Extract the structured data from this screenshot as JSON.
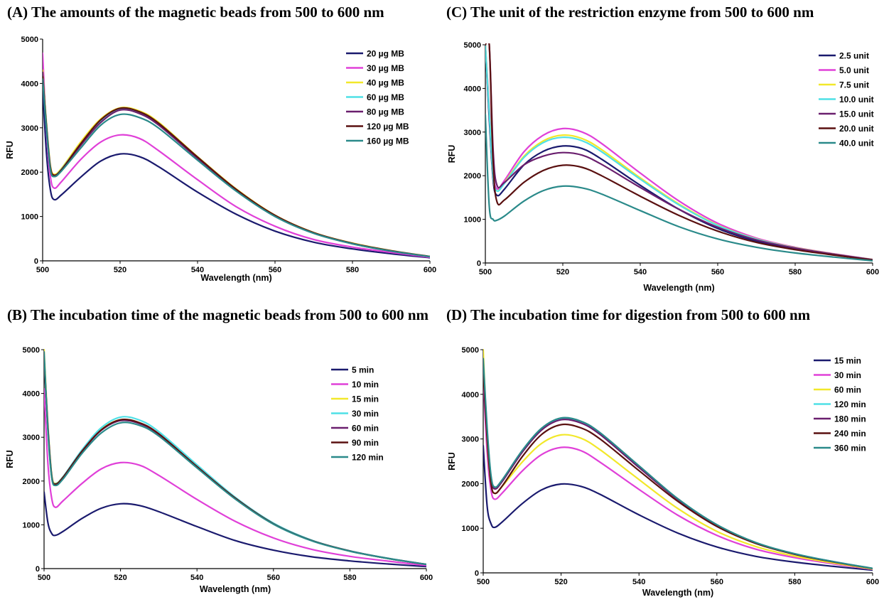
{
  "chart_data": [
    {
      "panel": "A",
      "type": "line",
      "title": "(A) The amounts of the magnetic beads from 500 to 600 nm",
      "xlabel": "Wavelength (nm)",
      "ylabel": "RFU",
      "xlim": [
        500,
        600
      ],
      "ylim": [
        0,
        5000
      ],
      "xticks": [
        500,
        520,
        540,
        560,
        580,
        600
      ],
      "yticks": [
        0,
        1000,
        2000,
        3000,
        4000,
        5000
      ],
      "grid": false,
      "legend": "top-right",
      "x": [
        500,
        501,
        502,
        503,
        505,
        510,
        515,
        520,
        525,
        530,
        540,
        550,
        560,
        570,
        580,
        590,
        600
      ],
      "series": [
        {
          "name": "20 µg MB",
          "color": "#1a1a6e",
          "values": [
            3900,
            2400,
            1600,
            1380,
            1500,
            1900,
            2250,
            2410,
            2350,
            2120,
            1550,
            1050,
            670,
            420,
            270,
            160,
            70
          ]
        },
        {
          "name": "30 µg MB",
          "color": "#e040d8",
          "values": [
            4680,
            2900,
            1900,
            1640,
            1800,
            2300,
            2680,
            2840,
            2760,
            2480,
            1830,
            1220,
            780,
            480,
            310,
            190,
            80
          ]
        },
        {
          "name": "40 µg MB",
          "color": "#f2e82a",
          "values": [
            4300,
            3100,
            2150,
            1950,
            2100,
            2700,
            3200,
            3450,
            3380,
            3120,
            2350,
            1620,
            1030,
            640,
            400,
            230,
            100
          ]
        },
        {
          "name": "60 µg MB",
          "color": "#4fe0e6",
          "values": [
            4200,
            3050,
            2100,
            1920,
            2080,
            2650,
            3150,
            3420,
            3350,
            3090,
            2330,
            1600,
            1020,
            630,
            390,
            225,
            95
          ]
        },
        {
          "name": "80 µg MB",
          "color": "#6a1f6e",
          "values": [
            4250,
            3000,
            2080,
            1900,
            2050,
            2620,
            3120,
            3400,
            3320,
            3060,
            2310,
            1590,
            1010,
            625,
            385,
            220,
            95
          ]
        },
        {
          "name": "120 µg MB",
          "color": "#5a1010",
          "values": [
            4150,
            3020,
            2120,
            1930,
            2070,
            2660,
            3180,
            3440,
            3360,
            3100,
            2340,
            1610,
            1025,
            635,
            395,
            228,
            98
          ]
        },
        {
          "name": "160 µg MB",
          "color": "#2a8a8a",
          "values": [
            4100,
            2950,
            2060,
            1900,
            2040,
            2560,
            3060,
            3300,
            3230,
            2990,
            2270,
            1570,
            1000,
            620,
            385,
            220,
            95
          ]
        }
      ]
    },
    {
      "panel": "B",
      "type": "line",
      "title": "(B) The incubation time of the magnetic beads from 500 to 600 nm",
      "xlabel": "Wavelength (nm)",
      "ylabel": "RFU",
      "xlim": [
        500,
        600
      ],
      "ylim": [
        0,
        5000
      ],
      "xticks": [
        500,
        520,
        540,
        560,
        580,
        600
      ],
      "yticks": [
        0,
        1000,
        2000,
        3000,
        4000,
        5000
      ],
      "grid": false,
      "legend": "top-right",
      "x": [
        500,
        501,
        502,
        503,
        505,
        510,
        515,
        520,
        525,
        530,
        540,
        550,
        560,
        570,
        580,
        590,
        600
      ],
      "series": [
        {
          "name": "5 min",
          "color": "#1a1a6e",
          "values": [
            1750,
            1050,
            800,
            760,
            850,
            1150,
            1380,
            1480,
            1440,
            1300,
            960,
            640,
            420,
            270,
            175,
            105,
            45
          ]
        },
        {
          "name": "10 min",
          "color": "#e040d8",
          "values": [
            4100,
            2400,
            1600,
            1400,
            1550,
            1950,
            2280,
            2420,
            2360,
            2130,
            1580,
            1080,
            700,
            440,
            280,
            170,
            70
          ]
        },
        {
          "name": "15 min",
          "color": "#f2e82a",
          "values": [
            5000,
            3300,
            2150,
            1950,
            2100,
            2700,
            3180,
            3400,
            3330,
            3070,
            2320,
            1600,
            1020,
            640,
            400,
            230,
            95
          ]
        },
        {
          "name": "30 min",
          "color": "#4fe0e6",
          "values": [
            4900,
            3250,
            2120,
            1940,
            2100,
            2720,
            3220,
            3460,
            3390,
            3130,
            2370,
            1630,
            1040,
            650,
            405,
            235,
            98
          ]
        },
        {
          "name": "60 min",
          "color": "#6a1f6e",
          "values": [
            4800,
            3200,
            2100,
            1920,
            2080,
            2680,
            3160,
            3380,
            3310,
            3060,
            2320,
            1600,
            1020,
            640,
            400,
            230,
            95
          ]
        },
        {
          "name": "90 min",
          "color": "#5a1010",
          "values": [
            4850,
            3220,
            2110,
            1930,
            2090,
            2690,
            3170,
            3400,
            3330,
            3080,
            2330,
            1610,
            1025,
            642,
            402,
            232,
            96
          ]
        },
        {
          "name": "120 min",
          "color": "#2a8a8a",
          "values": [
            4950,
            3150,
            2080,
            1900,
            2050,
            2640,
            3100,
            3330,
            3270,
            3030,
            2300,
            1590,
            1015,
            635,
            398,
            230,
            95
          ]
        }
      ]
    },
    {
      "panel": "C",
      "type": "line",
      "title": "(C) The unit of the restriction enzyme from 500 to 600 nm",
      "xlabel": "Wavelength (nm)",
      "ylabel": "RFU",
      "xlim": [
        500,
        600
      ],
      "ylim": [
        0,
        5000
      ],
      "xticks": [
        500,
        520,
        540,
        560,
        580,
        600
      ],
      "yticks": [
        0,
        1000,
        2000,
        3000,
        4000,
        5000
      ],
      "grid": false,
      "legend": "top-right",
      "x": [
        500,
        501,
        502,
        503,
        505,
        510,
        515,
        520,
        525,
        530,
        540,
        550,
        560,
        570,
        580,
        590,
        600
      ],
      "series": [
        {
          "name": "2.5 unit",
          "color": "#1a1a6e",
          "values": [
            5000,
            3300,
            1900,
            1550,
            1700,
            2250,
            2560,
            2680,
            2620,
            2380,
            1780,
            1230,
            790,
            500,
            320,
            190,
            70
          ]
        },
        {
          "name": "5.0 unit",
          "color": "#e040d8",
          "values": [
            5000,
            3600,
            2100,
            1700,
            1900,
            2550,
            2930,
            3080,
            3000,
            2740,
            2060,
            1420,
            910,
            570,
            360,
            210,
            80
          ]
        },
        {
          "name": "7.5 unit",
          "color": "#f2e82a",
          "values": [
            5000,
            3500,
            2000,
            1650,
            1850,
            2450,
            2800,
            2930,
            2850,
            2600,
            1950,
            1350,
            870,
            550,
            350,
            205,
            78
          ]
        },
        {
          "name": "10.0 unit",
          "color": "#4fe0e6",
          "values": [
            5000,
            3450,
            2000,
            1650,
            1830,
            2420,
            2760,
            2880,
            2800,
            2550,
            1920,
            1330,
            860,
            545,
            345,
            200,
            75
          ]
        },
        {
          "name": "15.0 unit",
          "color": "#6a1f6e",
          "values": [
            5000,
            5000,
            2600,
            1780,
            1850,
            2250,
            2450,
            2530,
            2470,
            2260,
            1730,
            1230,
            820,
            530,
            340,
            200,
            75
          ]
        },
        {
          "name": "20.0 unit",
          "color": "#5a1010",
          "values": [
            5000,
            5000,
            2300,
            1400,
            1450,
            1850,
            2120,
            2240,
            2190,
            2000,
            1530,
            1090,
            730,
            470,
            305,
            180,
            65
          ]
        },
        {
          "name": "40.0 unit",
          "color": "#2a8a8a",
          "values": [
            3400,
            1300,
            1000,
            980,
            1080,
            1420,
            1660,
            1760,
            1720,
            1580,
            1200,
            830,
            550,
            360,
            230,
            135,
            50
          ]
        }
      ]
    },
    {
      "panel": "D",
      "type": "line",
      "title": "(D) The incubation time for digestion from 500 to 600 nm",
      "xlabel": "Wavelength (nm)",
      "ylabel": "RFU",
      "xlim": [
        500,
        600
      ],
      "ylim": [
        0,
        5000
      ],
      "xticks": [
        500,
        520,
        540,
        560,
        580,
        600
      ],
      "yticks": [
        0,
        1000,
        2000,
        3000,
        4000,
        5000
      ],
      "grid": false,
      "legend": "top-right",
      "x": [
        500,
        501,
        502,
        503,
        505,
        510,
        515,
        520,
        525,
        530,
        540,
        550,
        560,
        570,
        580,
        590,
        600
      ],
      "series": [
        {
          "name": "15 min",
          "color": "#1a1a6e",
          "values": [
            2850,
            1500,
            1100,
            1020,
            1150,
            1550,
            1860,
            1990,
            1940,
            1760,
            1300,
            890,
            580,
            370,
            240,
            145,
            60
          ]
        },
        {
          "name": "30 min",
          "color": "#e040d8",
          "values": [
            4400,
            2700,
            1850,
            1650,
            1800,
            2280,
            2650,
            2810,
            2740,
            2480,
            1870,
            1290,
            840,
            530,
            340,
            200,
            80
          ]
        },
        {
          "name": "60 min",
          "color": "#f2e82a",
          "values": [
            5000,
            3000,
            2000,
            1780,
            1950,
            2480,
            2900,
            3090,
            3020,
            2760,
            2090,
            1440,
            930,
            590,
            375,
            220,
            88
          ]
        },
        {
          "name": "120 min",
          "color": "#4fe0e6",
          "values": [
            4700,
            3200,
            2150,
            1900,
            2080,
            2720,
            3220,
            3450,
            3380,
            3120,
            2380,
            1650,
            1070,
            675,
            425,
            250,
            100
          ]
        },
        {
          "name": "180 min",
          "color": "#6a1f6e",
          "values": [
            4600,
            3150,
            2120,
            1880,
            2060,
            2700,
            3200,
            3430,
            3360,
            3100,
            2360,
            1640,
            1065,
            670,
            422,
            248,
            99
          ]
        },
        {
          "name": "240 min",
          "color": "#5a1010",
          "values": [
            4500,
            3000,
            2000,
            1780,
            1960,
            2600,
            3100,
            3320,
            3250,
            3000,
            2290,
            1600,
            1040,
            660,
            415,
            244,
            97
          ]
        },
        {
          "name": "360 min",
          "color": "#2a8a8a",
          "values": [
            4800,
            3250,
            2180,
            1920,
            2100,
            2740,
            3240,
            3470,
            3400,
            3140,
            2400,
            1660,
            1080,
            680,
            428,
            252,
            101
          ]
        }
      ]
    }
  ]
}
